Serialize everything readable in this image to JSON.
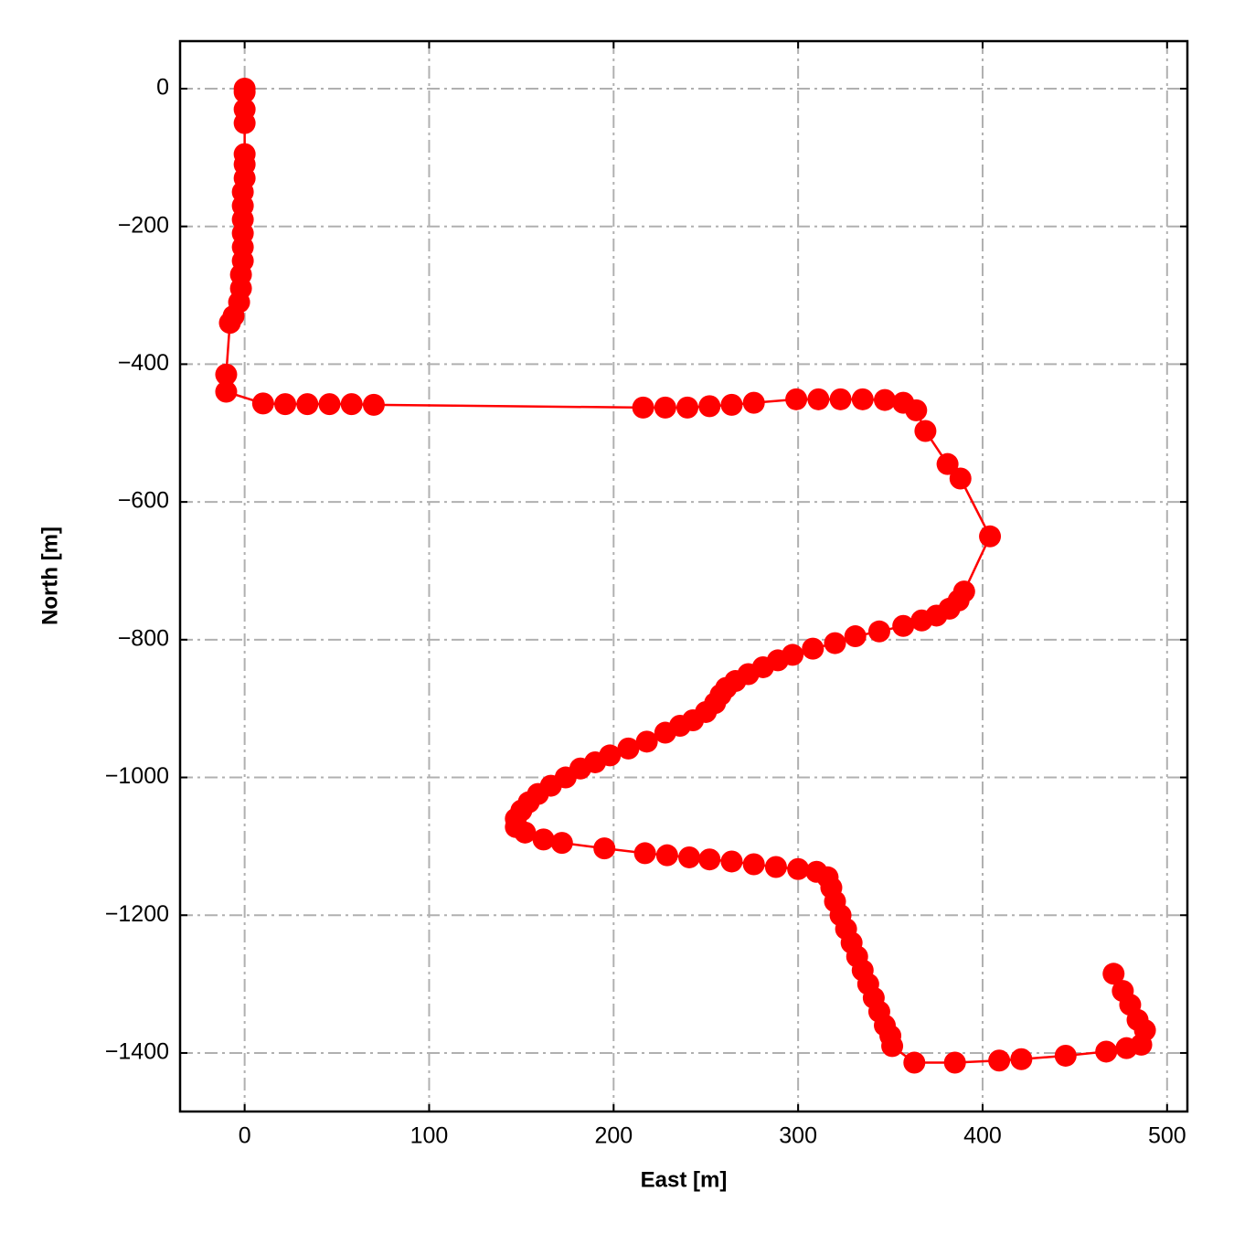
{
  "chart_data": {
    "type": "line",
    "xlabel": "East [m]",
    "ylabel": "North [m]",
    "color": "#ff0000",
    "markers": true,
    "grid": true,
    "xlim": [
      -35,
      511
    ],
    "ylim": [
      -1485,
      69
    ],
    "xticks": [
      0,
      100,
      200,
      300,
      400,
      500
    ],
    "yticks": [
      0,
      {
        "value": -200,
        "label": "−200"
      },
      {
        "value": -400,
        "label": "−400"
      },
      {
        "value": -600,
        "label": "−600"
      },
      {
        "value": -800,
        "label": "−800"
      },
      {
        "value": -1000,
        "label": "−1000"
      },
      {
        "value": -1200,
        "label": "−1200"
      },
      {
        "value": -1400,
        "label": "−1400"
      }
    ],
    "x": [
      0,
      0,
      0,
      0,
      0,
      0,
      0,
      -1,
      -1,
      -1,
      -1,
      -1,
      -1,
      -2,
      -2,
      -3,
      -6,
      -8,
      -10,
      -10,
      10,
      22,
      34,
      46,
      58,
      70,
      216,
      228,
      240,
      252,
      264,
      276,
      299,
      311,
      323,
      335,
      347,
      357,
      364,
      369,
      381,
      388,
      404,
      390,
      387,
      382,
      375,
      367,
      357,
      344,
      331,
      320,
      308,
      297,
      289,
      281,
      273,
      266,
      261,
      258,
      255,
      250,
      243,
      236,
      228,
      218,
      208,
      198,
      190,
      182,
      174,
      166,
      159,
      154,
      150,
      147,
      147,
      152,
      162,
      172,
      195,
      217,
      229,
      241,
      252,
      264,
      276,
      288,
      300,
      310,
      316,
      318,
      320,
      323,
      326,
      329,
      332,
      335,
      338,
      341,
      344,
      347,
      350,
      351,
      363,
      385,
      409,
      421,
      445,
      467,
      478,
      486,
      488,
      484,
      480,
      476,
      471
    ],
    "values": [
      0,
      -5,
      -30,
      -50,
      -95,
      -110,
      -130,
      -150,
      -170,
      -190,
      -210,
      -230,
      -250,
      -270,
      -290,
      -310,
      -330,
      -340,
      -415,
      -440,
      -457,
      -458,
      -458,
      -458,
      -458,
      -459,
      -463,
      -463,
      -463,
      -461,
      -459,
      -456,
      -451,
      -451,
      -451,
      -451,
      -452,
      -456,
      -467,
      -497,
      -545,
      -566,
      -650,
      -730,
      -743,
      -755,
      -765,
      -772,
      -780,
      -788,
      -795,
      -805,
      -813,
      -822,
      -830,
      -840,
      -850,
      -860,
      -870,
      -880,
      -892,
      -905,
      -917,
      -925,
      -935,
      -948,
      -958,
      -968,
      -978,
      -987,
      -1000,
      -1012,
      -1024,
      -1036,
      -1048,
      -1060,
      -1072,
      -1080,
      -1090,
      -1095,
      -1103,
      -1110,
      -1113,
      -1116,
      -1119,
      -1122,
      -1126,
      -1130,
      -1133,
      -1137,
      -1145,
      -1160,
      -1180,
      -1200,
      -1220,
      -1240,
      -1260,
      -1280,
      -1300,
      -1320,
      -1340,
      -1360,
      -1375,
      -1390,
      -1414,
      -1414,
      -1411,
      -1409,
      -1404,
      -1398,
      -1393,
      -1388,
      -1367,
      -1352,
      -1330,
      -1310,
      -1285
    ]
  }
}
